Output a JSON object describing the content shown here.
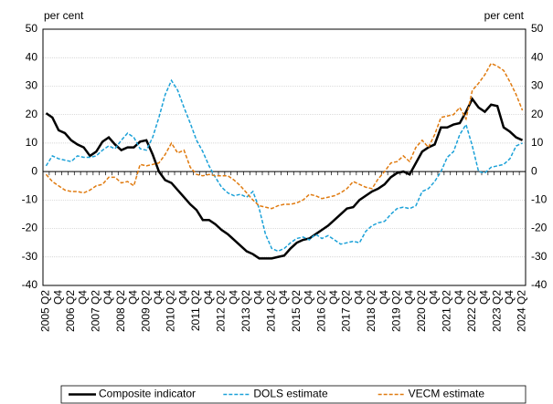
{
  "chart_data": {
    "type": "line",
    "y_label": "per cent",
    "y2_label": "per cent",
    "categories": [
      "2005 Q2",
      null,
      "Q4",
      null,
      "2006 Q2",
      null,
      "Q4",
      null,
      "2007 Q2",
      null,
      "Q4",
      null,
      "2008 Q2",
      null,
      "Q4",
      null,
      "2009 Q2",
      null,
      "Q4",
      null,
      "2010 Q2",
      null,
      "Q4",
      null,
      "2011 Q2",
      null,
      "Q4",
      null,
      "2012 Q2",
      null,
      "Q4",
      null,
      "2013 Q2",
      null,
      "Q4",
      null,
      "2014 Q2",
      null,
      "Q4",
      null,
      "2015 Q2",
      null,
      "Q4",
      null,
      "2016 Q2",
      null,
      "Q4",
      null,
      "2017 Q2",
      null,
      "Q4",
      null,
      "2018 Q2",
      null,
      "Q4",
      null,
      "2019 Q2",
      null,
      "Q4",
      null,
      "2020 Q2",
      null,
      "Q4",
      null,
      "2021 Q2",
      null,
      "Q4",
      null,
      "2022 Q2",
      null,
      "Q4",
      null,
      "2023 Q2",
      null,
      "Q4",
      null,
      "2024 Q2"
    ],
    "series": [
      {
        "name": "Composite indicator",
        "color": "#000000",
        "style": "solid",
        "values": [
          20.5,
          19,
          14.5,
          13.5,
          11,
          9.5,
          8.5,
          5.5,
          7,
          10.5,
          12,
          9.5,
          7.5,
          8.5,
          8.5,
          10.5,
          11,
          6,
          0,
          -3,
          -4,
          -6.5,
          -9,
          -11.5,
          -13.5,
          -17,
          -17,
          -18.5,
          -20.5,
          -22,
          -24,
          -26,
          -28,
          -29,
          -30.5,
          -30.5,
          -30.5,
          -30,
          -29.5,
          -27,
          -25,
          -24,
          -23.5,
          -22,
          -20.5,
          -19,
          -17,
          -15,
          -13,
          -12.5,
          -10,
          -8.5,
          -7,
          -6,
          -4.5,
          -2,
          -0.5,
          0,
          -1,
          3,
          7,
          8.5,
          9.5,
          15.5,
          15.5,
          16.5,
          17,
          21,
          25.5,
          22.5,
          21,
          23.5,
          23,
          15.5,
          14,
          12,
          11
        ]
      },
      {
        "name": "DOLS estimate",
        "color": "#1ba1d8",
        "style": "dashed",
        "values": [
          2,
          5.5,
          4.5,
          4,
          3.5,
          5.5,
          5,
          5,
          5.5,
          7.5,
          9,
          8,
          11,
          13.5,
          12,
          8,
          7.5,
          12,
          19,
          27,
          32,
          28.5,
          22.5,
          17,
          11,
          7,
          2,
          -2,
          -5.5,
          -7.5,
          -8.5,
          -8,
          -9,
          -7,
          -13,
          -22,
          -27,
          -28,
          -27,
          -25,
          -23.5,
          -23,
          -24,
          -22,
          -23.5,
          -22.5,
          -24,
          -25.5,
          -25,
          -24.5,
          -25,
          -21,
          -19,
          -18,
          -17.5,
          -15,
          -13,
          -12.5,
          -13,
          -12,
          -7,
          -6,
          -3.5,
          0,
          5,
          7,
          13,
          16.5,
          9,
          0,
          -0.5,
          1.5,
          2,
          2.5,
          4.5,
          9,
          10
        ]
      },
      {
        "name": "VECM estimate",
        "color": "#e07b10",
        "style": "dashed",
        "values": [
          -1,
          -3.5,
          -5,
          -6.5,
          -7,
          -7,
          -7.5,
          -6.5,
          -5,
          -4.5,
          -2,
          -2,
          -4,
          -3.5,
          -5,
          2.5,
          2,
          2.5,
          3,
          6,
          10,
          6.5,
          7.5,
          1.5,
          -1,
          -1.5,
          -1,
          -1.5,
          -1.5,
          -1.5,
          -3,
          -5,
          -7.5,
          -10,
          -12,
          -12.5,
          -13,
          -12,
          -11.5,
          -11.5,
          -11,
          -10,
          -8,
          -8.5,
          -9.5,
          -9,
          -8.5,
          -7.5,
          -6,
          -3.5,
          -4.5,
          -5.5,
          -6,
          -2.5,
          0,
          3,
          3.5,
          5.5,
          3.5,
          8.5,
          11,
          8.5,
          13,
          19,
          19.5,
          20,
          22.5,
          18.5,
          28.5,
          31,
          34,
          38,
          37,
          35.5,
          31.5,
          27,
          21.5
        ]
      }
    ],
    "ylim": [
      -40,
      50
    ],
    "yticks": [
      -40,
      -30,
      -20,
      -10,
      0,
      10,
      20,
      30,
      40,
      50
    ],
    "y2lim": [
      -40,
      50
    ],
    "y2ticks": [
      -40,
      -30,
      -20,
      -10,
      0,
      10,
      20,
      30,
      40,
      50
    ],
    "grid": true,
    "legend": "bottom"
  }
}
